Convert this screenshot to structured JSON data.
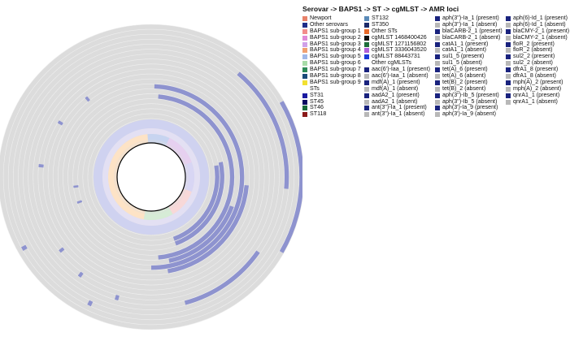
{
  "legend_title": "Serovar -> BAPS1 -> ST -> cgMLST -> AMR loci",
  "legend_columns": [
    [
      {
        "label": "Newport",
        "color": "#e8826a"
      },
      {
        "label": "Other serovars",
        "color": "#1f2d8a"
      },
      {
        "label": "BAPS1 sub-group 1",
        "color": "#f28c8c"
      },
      {
        "label": "BAPS1 sub-group 2",
        "color": "#e08ad8"
      },
      {
        "label": "BAPS1 sub-group 3",
        "color": "#cfa0e8"
      },
      {
        "label": "BAPS1 sub-group 4",
        "color": "#f0a070"
      },
      {
        "label": "BAPS1 sub-group 5",
        "color": "#a0b8e8"
      },
      {
        "label": "BAPS1 sub-group 6",
        "color": "#a8dca8"
      },
      {
        "label": "BAPS1 sub-group 7",
        "color": "#2e8b57"
      },
      {
        "label": "BAPS1 sub-group 8",
        "color": "#1a4a7a"
      },
      {
        "label": "BAPS1 sub-group 9",
        "color": "#f2e030"
      },
      {
        "label": "STs",
        "color": "#ffffff"
      },
      {
        "label": "ST31",
        "color": "#1a1aa0"
      },
      {
        "label": "ST45",
        "color": "#0a0a60"
      },
      {
        "label": "ST46",
        "color": "#1a6a3a"
      },
      {
        "label": "ST118",
        "color": "#8a1a1a"
      }
    ],
    [
      {
        "label": "ST132",
        "color": "#5a8ab8"
      },
      {
        "label": "ST350",
        "color": "#1a2a6a"
      },
      {
        "label": "Other STs",
        "color": "#e86a2a"
      },
      {
        "label": "cgMLST 1468400426",
        "color": "#111111"
      },
      {
        "label": "cgMLST 1271156802",
        "color": "#1e6e3a"
      },
      {
        "label": "cgMLST 3336043520",
        "color": "#b060d8"
      },
      {
        "label": "cgMLST 88443731",
        "color": "#1a3ad8"
      },
      {
        "label": "Other cgMLSTs",
        "color": "#ffffff"
      },
      {
        "label": "aac(6')-Iaa_1 (present)",
        "color": "#1a237e"
      },
      {
        "label": "aac(6')-Iaa_1 (absent)",
        "color": "#b8b8b8"
      },
      {
        "label": "mdf(A)_1 (present)",
        "color": "#1a237e"
      },
      {
        "label": "mdf(A)_1 (absent)",
        "color": "#b8b8b8"
      },
      {
        "label": "aadA2_1 (present)",
        "color": "#1a237e"
      },
      {
        "label": "aadA2_1 (absent)",
        "color": "#b8b8b8"
      },
      {
        "label": "ant(3'')-Ia_1 (present)",
        "color": "#1a237e"
      },
      {
        "label": "ant(3'')-Ia_1 (absent)",
        "color": "#b8b8b8"
      }
    ],
    [
      {
        "label": "aph(3'')-Ia_1 (present)",
        "color": "#1a237e"
      },
      {
        "label": "aph(3'')-Ia_1 (absent)",
        "color": "#b8b8b8"
      },
      {
        "label": "blaCARB-2_1 (present)",
        "color": "#1a237e"
      },
      {
        "label": "blaCARB-2_1 (absent)",
        "color": "#b8b8b8"
      },
      {
        "label": "catA1_1 (present)",
        "color": "#1a237e"
      },
      {
        "label": "catA1_1 (absent)",
        "color": "#b8b8b8"
      },
      {
        "label": "sul1_5 (present)",
        "color": "#1a237e"
      },
      {
        "label": "sul1_5 (absent)",
        "color": "#b8b8b8"
      },
      {
        "label": "tet(A)_6 (present)",
        "color": "#1a237e"
      },
      {
        "label": "tet(A)_6 (absent)",
        "color": "#b8b8b8"
      },
      {
        "label": "tet(B)_2 (present)",
        "color": "#1a237e"
      },
      {
        "label": "tet(B)_2 (absent)",
        "color": "#b8b8b8"
      },
      {
        "label": "aph(3'')-Ib_5 (present)",
        "color": "#1a237e"
      },
      {
        "label": "aph(3'')-Ib_5 (absent)",
        "color": "#b8b8b8"
      },
      {
        "label": "aph(3')-Ia_9 (present)",
        "color": "#1a237e"
      },
      {
        "label": "aph(3')-Ia_9 (absent)",
        "color": "#b8b8b8"
      }
    ],
    [
      {
        "label": "aph(6)-Id_1 (present)",
        "color": "#1a237e"
      },
      {
        "label": "aph(6)-Id_1 (absent)",
        "color": "#b8b8b8"
      },
      {
        "label": "blaCMY-2_1 (present)",
        "color": "#1a237e"
      },
      {
        "label": "blaCMY-2_1 (absent)",
        "color": "#b8b8b8"
      },
      {
        "label": "floR_2 (present)",
        "color": "#1a237e"
      },
      {
        "label": "floR_2 (absent)",
        "color": "#b8b8b8"
      },
      {
        "label": "sul2_2 (present)",
        "color": "#1a237e"
      },
      {
        "label": "sul2_2 (absent)",
        "color": "#b8b8b8"
      },
      {
        "label": "dfrA1_8 (present)",
        "color": "#1a237e"
      },
      {
        "label": "dfrA1_8 (absent)",
        "color": "#b8b8b8"
      },
      {
        "label": "mph(A)_2 (present)",
        "color": "#1a237e"
      },
      {
        "label": "mph(A)_2 (absent)",
        "color": "#b8b8b8"
      },
      {
        "label": "qnrA1_1 (present)",
        "color": "#1a237e"
      },
      {
        "label": "qnrA1_1 (absent)",
        "color": "#b8b8b8"
      }
    ]
  ],
  "chart_data": {
    "type": "circular-heatmap",
    "title": "Serovar -> BAPS1 -> ST -> cgMLST -> AMR loci",
    "inner_ring_order": [
      "Serovar",
      "BAPS1",
      "ST",
      "cgMLST"
    ],
    "amr_loci": [
      "aac(6')-Iaa_1",
      "mdf(A)_1",
      "aadA2_1",
      "ant(3'')-Ia_1",
      "aph(3'')-Ia_1",
      "blaCARB-2_1",
      "catA1_1",
      "sul1_5",
      "tet(A)_6",
      "tet(B)_2",
      "aph(3'')-Ib_5",
      "aph(3')-Ia_9",
      "aph(6)-Id_1",
      "blaCMY-2_1",
      "floR_2",
      "sul2_2",
      "dfrA1_8",
      "mph(A)_2",
      "qnrA1_1"
    ],
    "present_color": "#8e93cf",
    "absent_color": "#dcdcdc",
    "inner_ring_segments": [
      {
        "start": -170,
        "end": -5,
        "color": "#fde3c6"
      },
      {
        "start": -5,
        "end": 25,
        "color": "#c7d4f0"
      },
      {
        "start": 25,
        "end": 70,
        "color": "#e6d0f0"
      },
      {
        "start": 70,
        "end": 110,
        "color": "#d8d6f4"
      },
      {
        "start": 110,
        "end": 150,
        "color": "#f8d8d8"
      },
      {
        "start": 150,
        "end": 190,
        "color": "#d6ecd6"
      }
    ],
    "present_arcs": [
      {
        "ring": 1,
        "start": 80,
        "end": 160
      },
      {
        "ring": 2,
        "start": 78,
        "end": 160
      },
      {
        "ring": 4,
        "start": 5,
        "end": 175
      },
      {
        "ring": 5,
        "start": 110,
        "end": 168
      },
      {
        "ring": 6,
        "start": 2,
        "end": 180
      },
      {
        "ring": 7,
        "start": 95,
        "end": 170
      },
      {
        "ring": 14,
        "start": 125,
        "end": 165
      },
      {
        "ring": 15,
        "start": 40,
        "end": 95
      },
      {
        "ring": 18,
        "start": 60,
        "end": 120
      }
    ]
  }
}
